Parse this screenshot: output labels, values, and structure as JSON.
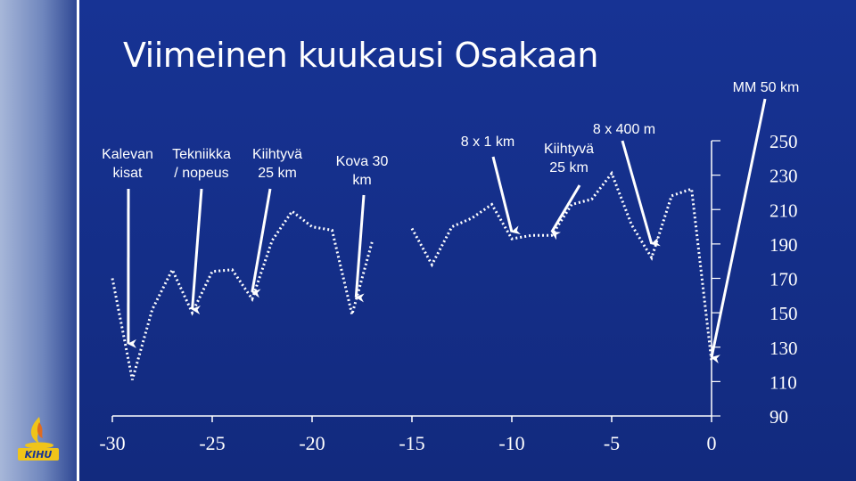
{
  "title": "Viimeinen kuukausi Osakaan",
  "annotations": [
    {
      "id": "kalevan",
      "text": "Kalevan kisat",
      "lines": [
        "Kalevan",
        "kisat"
      ]
    },
    {
      "id": "tekniikka",
      "text": "Tekniikka / nopeus",
      "lines": [
        "Tekniikka",
        "/ nopeus"
      ]
    },
    {
      "id": "kiihtyva1",
      "text": "Kiihtyvä 25 km",
      "lines": [
        "Kiihtyvä",
        "25 km"
      ]
    },
    {
      "id": "kova",
      "text": "Kova 30 km",
      "lines": [
        "Kova 30",
        "km"
      ]
    },
    {
      "id": "km8x1",
      "text": "8 x 1 km",
      "lines": [
        "8 x 1 km"
      ]
    },
    {
      "id": "kiihtyva2",
      "text": "Kiihtyvä 25 km",
      "lines": [
        "Kiihtyvä",
        "25 km"
      ]
    },
    {
      "id": "m400",
      "text": "8 x 400 m",
      "lines": [
        "8 x 400 m"
      ]
    },
    {
      "id": "mm50",
      "text": "MM 50 km",
      "lines": [
        "MM 50 km"
      ]
    }
  ],
  "logo": {
    "text": "KIHU"
  },
  "colors": {
    "background": "#16308a",
    "line": "#ffffff",
    "text": "#ffffff"
  },
  "chart_data": {
    "type": "line",
    "title": "",
    "xlabel": "",
    "ylabel": "",
    "xlim": [
      -30,
      0
    ],
    "ylim": [
      90,
      250
    ],
    "xticks": [
      -30,
      -25,
      -20,
      -15,
      -10,
      -5,
      0
    ],
    "yticks": [
      90,
      110,
      130,
      150,
      170,
      190,
      210,
      230,
      250
    ],
    "x_tick_labels": [
      "-30",
      "-25",
      "-20",
      "-15",
      "-10",
      "-5",
      "0"
    ],
    "y_tick_labels": [
      "90",
      "110",
      "130",
      "150",
      "170",
      "190",
      "210",
      "230",
      "250"
    ],
    "y_axis_side": "right",
    "grid": false,
    "line_style": "dotted",
    "series": [
      {
        "name": "",
        "points": [
          [
            -30,
            170
          ],
          [
            -29,
            111
          ],
          [
            -28,
            152
          ],
          [
            -27,
            175
          ],
          [
            -26,
            150
          ],
          [
            -25,
            174
          ],
          [
            -24,
            175
          ],
          [
            -23,
            158
          ],
          [
            -22,
            192
          ],
          [
            -21,
            209
          ],
          [
            -20,
            200
          ],
          [
            -19,
            198
          ],
          [
            -18,
            149
          ],
          [
            -17,
            191
          ]
        ]
      },
      {
        "name": "",
        "points": [
          [
            -15,
            199
          ],
          [
            -14,
            178
          ],
          [
            -13,
            200
          ],
          [
            -12,
            205
          ],
          [
            -11,
            213
          ],
          [
            -10,
            193
          ],
          [
            -9,
            195
          ],
          [
            -8,
            195
          ],
          [
            -7,
            213
          ],
          [
            -6,
            216
          ],
          [
            -5,
            231
          ],
          [
            -4,
            201
          ],
          [
            -3,
            182
          ],
          [
            -2,
            218
          ],
          [
            -1,
            222
          ],
          [
            0,
            122
          ]
        ]
      }
    ],
    "arrows": [
      {
        "label": "Kalevan kisat",
        "x": -29.2,
        "y": 132
      },
      {
        "label": "Tekniikka / nopeus",
        "x": -26.0,
        "y": 152
      },
      {
        "label": "Kiihtyvä 25 km",
        "x": -23.0,
        "y": 162
      },
      {
        "label": "Kova 30 km",
        "x": -17.8,
        "y": 159
      },
      {
        "label": "8 x 1 km",
        "x": -10.0,
        "y": 197
      },
      {
        "label": "Kiihtyvä 25 km",
        "x": -8.0,
        "y": 197
      },
      {
        "label": "8 x 400 m",
        "x": -3.0,
        "y": 190
      },
      {
        "label": "MM 50 km",
        "x": 0,
        "y": 124
      }
    ]
  }
}
